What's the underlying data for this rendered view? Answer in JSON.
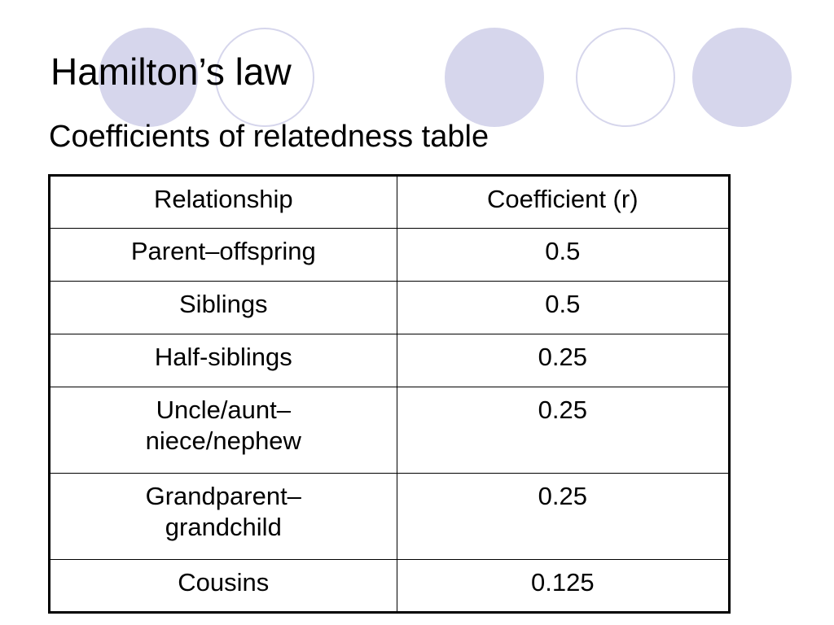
{
  "slide": {
    "title": "Hamilton’s law",
    "subtitle": "Coefficients of relatedness table"
  },
  "colors": {
    "circle_fill": "#d6d6ec",
    "text": "#000000",
    "border": "#000000"
  },
  "table": {
    "headers": [
      "Relationship",
      "Coefficient (r)"
    ],
    "rows": [
      {
        "relationship": [
          "Parent–offspring"
        ],
        "coefficient": "0.5"
      },
      {
        "relationship": [
          "Siblings"
        ],
        "coefficient": "0.5"
      },
      {
        "relationship": [
          "Half-siblings"
        ],
        "coefficient": "0.25"
      },
      {
        "relationship": [
          "Uncle/aunt–",
          "niece/nephew"
        ],
        "coefficient": "0.25"
      },
      {
        "relationship": [
          "Grandparent–",
          "grandchild"
        ],
        "coefficient": "0.25"
      },
      {
        "relationship": [
          "Cousins"
        ],
        "coefficient": "0.125"
      }
    ]
  }
}
